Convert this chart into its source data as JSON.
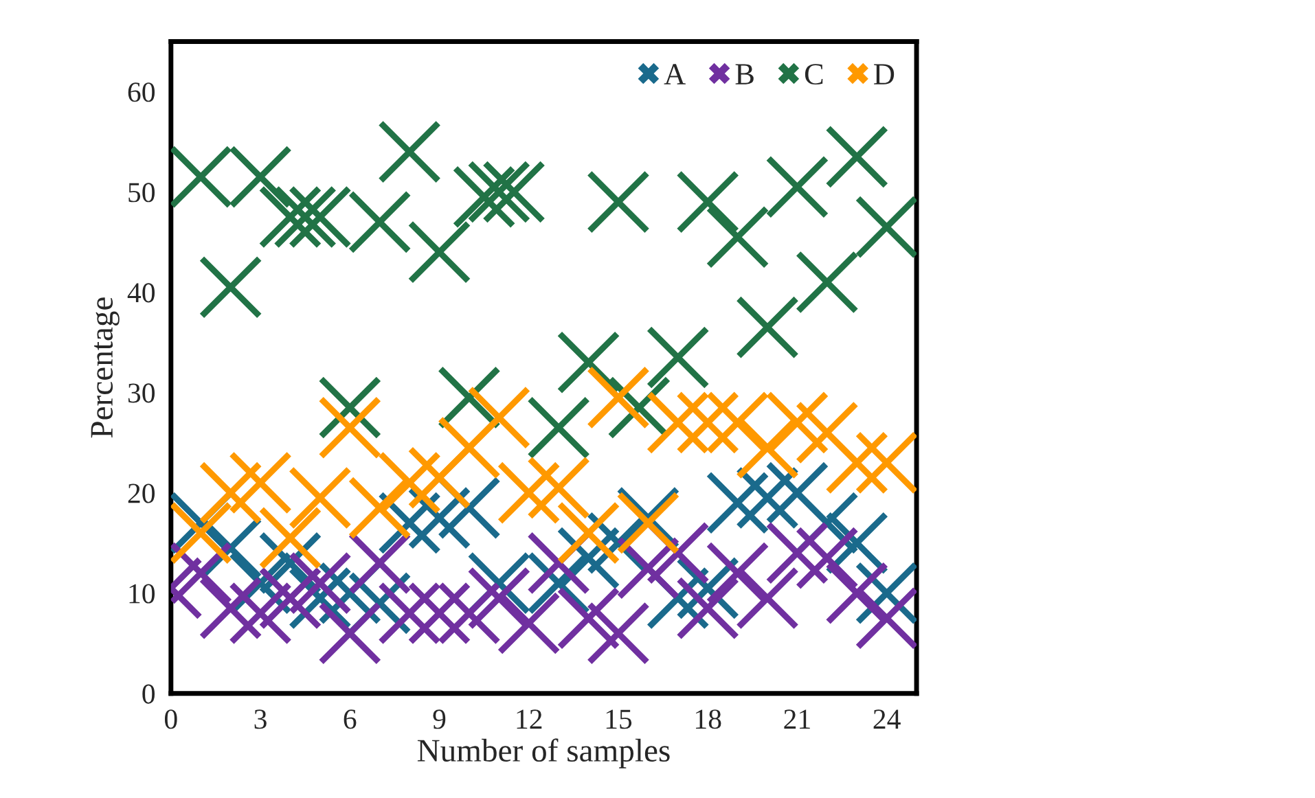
{
  "chart_data": {
    "type": "scatter",
    "xlabel": "Number of samples",
    "ylabel": "Percentage",
    "xlim": [
      0,
      25
    ],
    "xticks": [
      0,
      3,
      6,
      9,
      12,
      15,
      18,
      21,
      24
    ],
    "ylim": [
      0,
      65
    ],
    "yticks": [
      0,
      10,
      20,
      30,
      40,
      50,
      60
    ],
    "grid": false,
    "legend": "top right",
    "marker": "cross",
    "series": [
      {
        "name": "A",
        "color": "#1a6a8c",
        "x": [
          1,
          2,
          3,
          4,
          5,
          6,
          7,
          8,
          9,
          10,
          11,
          13,
          14,
          15,
          16,
          17,
          18,
          19,
          20,
          21,
          22,
          23,
          24
        ],
        "values": [
          17,
          14.5,
          11,
          13,
          9.5,
          10,
          9,
          17,
          17.5,
          18.5,
          11,
          11,
          13.5,
          15,
          17.5,
          9.5,
          10.5,
          19,
          19.5,
          20,
          17,
          15,
          10
        ]
      },
      {
        "name": "B",
        "color": "#7030a0",
        "x": [
          0,
          1,
          2,
          3,
          4,
          5,
          6,
          7,
          8,
          9,
          10,
          11,
          12,
          13,
          14,
          15,
          16,
          17,
          18,
          19,
          20,
          21,
          22,
          23,
          24
        ],
        "values": [
          10.5,
          12,
          8.5,
          8,
          9.5,
          11,
          6,
          13,
          8,
          8,
          8,
          9.5,
          7,
          13,
          7.5,
          6,
          12.5,
          14,
          8.5,
          12,
          9.5,
          14,
          13.5,
          10,
          7.5
        ]
      },
      {
        "name": "C",
        "color": "#217346",
        "x": [
          1,
          2,
          3,
          4,
          4.5,
          5,
          6,
          7,
          8,
          9,
          10,
          10.5,
          11,
          11.5,
          13,
          14,
          15,
          15.7,
          17,
          18,
          19,
          20,
          21,
          22,
          23,
          24
        ],
        "values": [
          51.5,
          40.5,
          51.5,
          47.5,
          47.5,
          47.5,
          28.5,
          47,
          54,
          44,
          29.5,
          49.5,
          50,
          50,
          26.5,
          33,
          49,
          28.5,
          33.5,
          49,
          45.5,
          36.5,
          50.5,
          41,
          53.5,
          46.5
        ]
      },
      {
        "name": "D",
        "color": "#ff9900",
        "x": [
          1,
          2,
          3,
          4,
          5,
          6,
          7,
          8,
          9,
          10,
          11,
          12,
          13,
          14,
          15,
          16,
          17,
          18,
          19,
          20,
          21,
          22,
          23,
          24
        ],
        "values": [
          16,
          20,
          21,
          15.5,
          19.5,
          26.5,
          18.5,
          21,
          21.5,
          24.5,
          27.5,
          20,
          20.5,
          16,
          29.5,
          17,
          27,
          27,
          27,
          24.5,
          27,
          26,
          23,
          23
        ]
      }
    ]
  }
}
